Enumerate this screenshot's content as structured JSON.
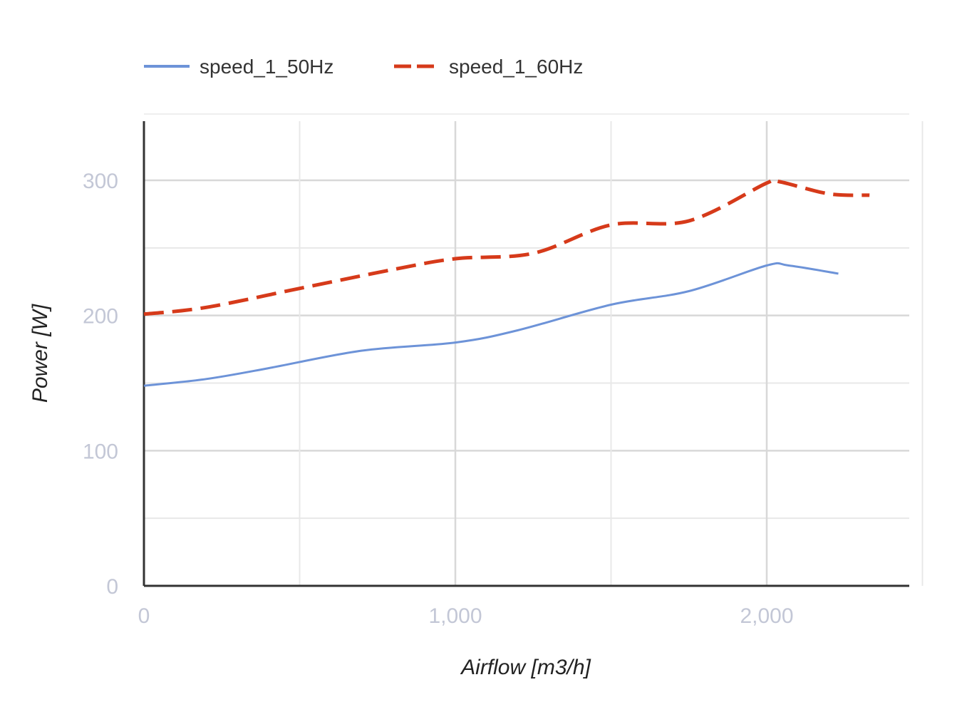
{
  "chart_data": {
    "type": "line",
    "xlabel": "Airflow [m3/h]",
    "ylabel": "Power [W]",
    "xlim": [
      0,
      2450
    ],
    "ylim": [
      0,
      300
    ],
    "x_ticks": [
      0,
      1000,
      2000
    ],
    "x_tick_labels": [
      "0",
      "1,000",
      "2,000"
    ],
    "y_ticks": [
      0,
      100,
      200,
      300
    ],
    "y_tick_labels": [
      "0",
      "100",
      "200",
      "300"
    ],
    "grid": true,
    "legend_position": "top-left",
    "series": [
      {
        "name": "speed_1_50Hz",
        "color": "#6d93d8",
        "style": "solid",
        "x": [
          0,
          200,
          400,
          700,
          1000,
          1200,
          1500,
          1750,
          2000,
          2070,
          2230
        ],
        "y": [
          148,
          153,
          161,
          174,
          180,
          189,
          208,
          218,
          237,
          237,
          231
        ]
      },
      {
        "name": "speed_1_60Hz",
        "color": "#d63a1a",
        "style": "dashed",
        "x": [
          0,
          200,
          500,
          800,
          1000,
          1250,
          1500,
          1750,
          2000,
          2040,
          2200,
          2330
        ],
        "y": [
          201,
          206,
          220,
          234,
          242,
          246,
          267,
          270,
          298,
          299,
          290,
          289
        ]
      }
    ]
  }
}
